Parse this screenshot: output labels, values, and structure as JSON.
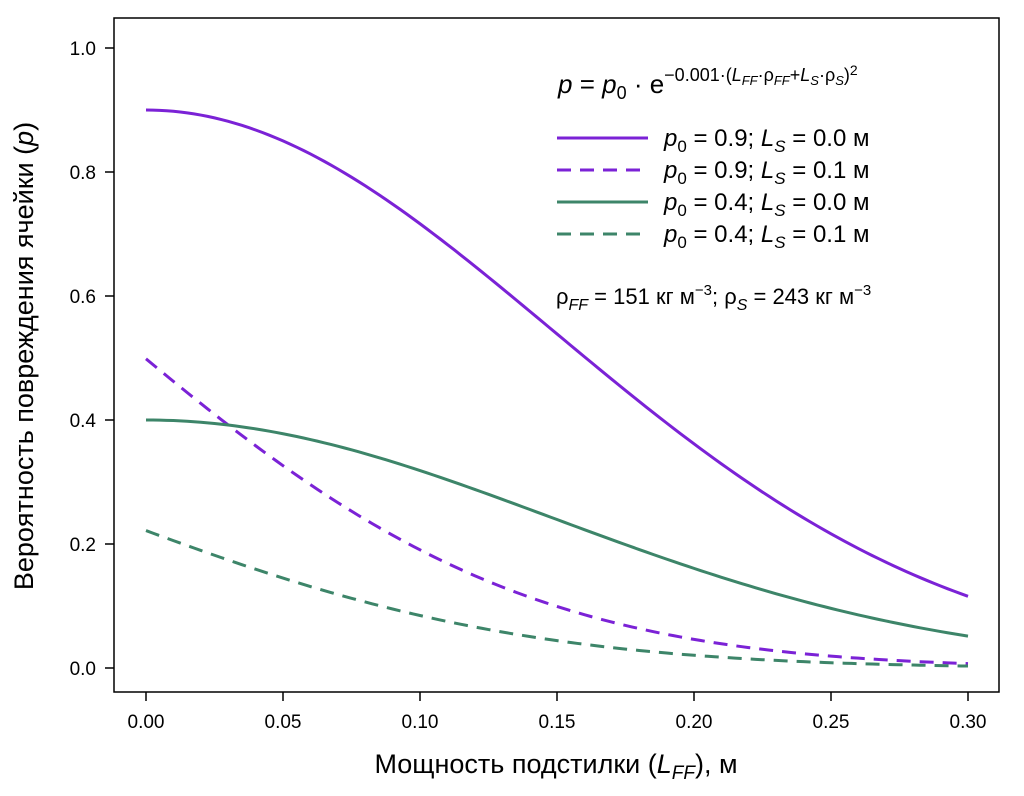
{
  "chart_data": {
    "type": "line",
    "xlabel": {
      "main": "Мощность подстилки",
      "var": "L",
      "sub": "FF",
      "unit": ", м"
    },
    "ylabel": {
      "main": "Вероятность повреждения ячейки",
      "var": "p"
    },
    "xlim": [
      0.0,
      0.3
    ],
    "ylim": [
      0.0,
      1.0
    ],
    "xticks": [
      0.0,
      0.05,
      0.1,
      0.15,
      0.2,
      0.25,
      0.3
    ],
    "xtick_labels": [
      "0.00",
      "0.05",
      "0.10",
      "0.15",
      "0.20",
      "0.25",
      "0.30"
    ],
    "yticks": [
      0.0,
      0.2,
      0.4,
      0.6,
      0.8,
      1.0
    ],
    "ytick_labels": [
      "0.0",
      "0.2",
      "0.4",
      "0.6",
      "0.8",
      "1.0"
    ],
    "grid": false,
    "model": {
      "coef": 0.001,
      "rho_ff": 151,
      "rho_s": 243
    },
    "formula": {
      "lhs": "p",
      "eq": " = ",
      "p0": "p",
      "p0_sub": "0",
      "dot": " · e",
      "exp_main": "−0.001·(",
      "exp_l1": "L",
      "exp_l1_sub": "FF",
      "exp_rho1": "·ρ",
      "exp_rho1_sub": "FF",
      "exp_plus": "+",
      "exp_l2": "L",
      "exp_l2_sub": "S",
      "exp_rho2": "·ρ",
      "exp_rho2_sub": "S",
      "exp_close": ")",
      "exp_pow": "2"
    },
    "density_text": {
      "rho1": "ρ",
      "rho1_sub": "FF",
      "rho1_val": " = 151 кг м",
      "rho1_exp": "−3",
      "sep": "; ",
      "rho2": "ρ",
      "rho2_sub": "S",
      "rho2_val": " = 243 кг м",
      "rho2_exp": "−3"
    },
    "legend_position": "top-right",
    "series": [
      {
        "name": "p0 = 0.9; LS = 0.0  м",
        "p0": 0.9,
        "ls": 0.0,
        "color": "#7b22d6",
        "dash": "solid",
        "label": {
          "p": "p",
          "p0sub": "0",
          "p0val": " = 0.9; ",
          "L": "L",
          "Lsub": "S",
          "Lval": " = 0.0  м"
        }
      },
      {
        "name": "p0 = 0.9; LS = 0.1  м",
        "p0": 0.9,
        "ls": 0.1,
        "color": "#7b22d6",
        "dash": "dashed",
        "label": {
          "p": "p",
          "p0sub": "0",
          "p0val": " = 0.9; ",
          "L": "L",
          "Lsub": "S",
          "Lval": " = 0.1  м"
        }
      },
      {
        "name": "p0 = 0.4; LS = 0.0  м",
        "p0": 0.4,
        "ls": 0.0,
        "color": "#3d8569",
        "dash": "solid",
        "label": {
          "p": "p",
          "p0sub": "0",
          "p0val": " = 0.4; ",
          "L": "L",
          "Lsub": "S",
          "Lval": " = 0.0  м"
        }
      },
      {
        "name": "p0 = 0.4; LS = 0.1  м",
        "p0": 0.4,
        "ls": 0.1,
        "color": "#3d8569",
        "dash": "dashed",
        "label": {
          "p": "p",
          "p0sub": "0",
          "p0val": " = 0.4; ",
          "L": "L",
          "Lsub": "S",
          "Lval": " = 0.1  м"
        }
      }
    ]
  }
}
